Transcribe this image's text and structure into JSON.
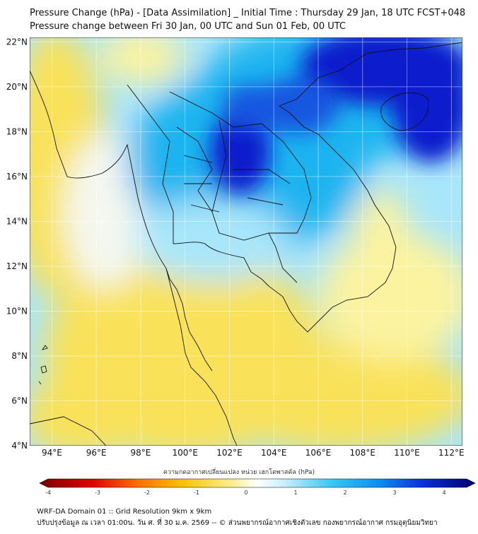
{
  "title_line1": "Pressure Change (hPa) - [Data Assimilation] _ Initial Time : Thursday 29 Jan, 18 UTC FCST+048",
  "title_line2": "Pressure change between Fri 30 Jan, 00 UTC and Sun 01 Feb, 00 UTC",
  "map": {
    "lon_range": [
      93,
      112.5
    ],
    "lat_range": [
      4,
      22.2
    ],
    "lon_ticks": [
      "94°E",
      "96°E",
      "98°E",
      "100°E",
      "102°E",
      "104°E",
      "106°E",
      "108°E",
      "110°E",
      "112°E"
    ],
    "lat_ticks": [
      "22°N",
      "20°N",
      "18°N",
      "16°N",
      "14°N",
      "12°N",
      "10°N",
      "8°N",
      "6°N",
      "4°N"
    ],
    "grid": true,
    "colors": {
      "strong_rise": "#0a1fcc",
      "rise": "#1ab4f0",
      "weak_rise": "#a8e6fa",
      "neutral": "#f4f8f0",
      "weak_fall": "#fbf3a0",
      "fall": "#f9e25a",
      "strong_fall": "#8b0000"
    }
  },
  "colorbar": {
    "label": "ความกดอากาศเปลี่ยนแปลง หน่วย เฮกโตพาสคัล (hPa)",
    "ticks": [
      "-4",
      "-3",
      "-2",
      "-1",
      "0",
      "1",
      "2",
      "3",
      "4"
    ],
    "range": [
      -4,
      4
    ]
  },
  "footer_line1": "WRF-DA Domain 01 :: Grid Resolution 9km x 9km",
  "footer_line2": "ปรับปรุงข้อมูล ณ เวลา 01:00น. วัน ศ. ที่ 30 ม.ค. 2569 -- © ส่วนพยากรณ์อากาศเชิงตัวเลข กองพยากรณ์อากาศ กรมอุตุนิยมวิทยา"
}
